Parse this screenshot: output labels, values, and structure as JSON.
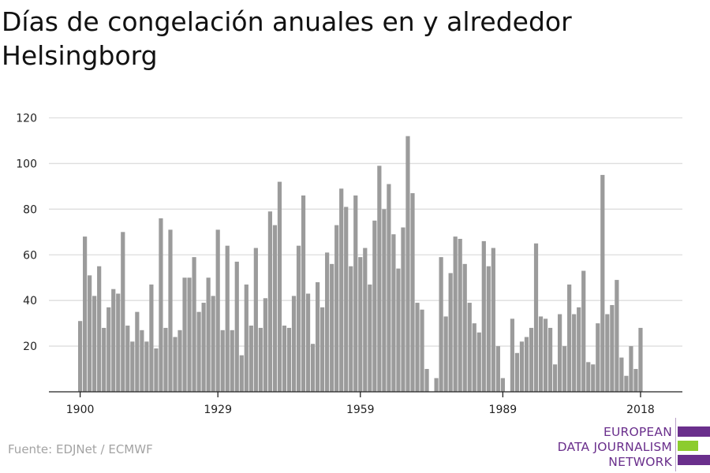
{
  "chart_data": {
    "type": "bar",
    "title": "Días de congelación anuales en y alrededor Helsingborg",
    "xlabel": "",
    "ylabel": "",
    "ylim": [
      0,
      120
    ],
    "y_ticks": [
      20,
      40,
      60,
      80,
      100,
      120
    ],
    "x_ticks": [
      1900,
      1929,
      1959,
      1989,
      2018
    ],
    "grid": true,
    "bar_color": "#9b9b9b",
    "x": [
      1900,
      1901,
      1902,
      1903,
      1904,
      1905,
      1906,
      1907,
      1908,
      1909,
      1910,
      1911,
      1912,
      1913,
      1914,
      1915,
      1916,
      1917,
      1918,
      1919,
      1920,
      1921,
      1922,
      1923,
      1924,
      1925,
      1926,
      1927,
      1928,
      1929,
      1930,
      1931,
      1932,
      1933,
      1934,
      1935,
      1936,
      1937,
      1938,
      1939,
      1940,
      1941,
      1942,
      1943,
      1944,
      1945,
      1946,
      1947,
      1948,
      1949,
      1950,
      1951,
      1952,
      1953,
      1954,
      1955,
      1956,
      1957,
      1958,
      1959,
      1960,
      1961,
      1962,
      1963,
      1964,
      1965,
      1966,
      1967,
      1968,
      1969,
      1970,
      1971,
      1972,
      1973,
      1974,
      1975,
      1976,
      1977,
      1978,
      1979,
      1980,
      1981,
      1982,
      1983,
      1984,
      1985,
      1986,
      1987,
      1988,
      1989,
      1990,
      1991,
      1992,
      1993,
      1994,
      1995,
      1996,
      1997,
      1998,
      1999,
      2000,
      2001,
      2002,
      2003,
      2004,
      2005,
      2006,
      2007,
      2008,
      2009,
      2010,
      2011,
      2012,
      2013,
      2014,
      2015,
      2016,
      2017,
      2018
    ],
    "values": [
      31,
      68,
      51,
      42,
      55,
      28,
      37,
      45,
      43,
      70,
      29,
      22,
      35,
      27,
      22,
      47,
      19,
      76,
      28,
      71,
      24,
      27,
      50,
      50,
      59,
      35,
      39,
      50,
      42,
      71,
      27,
      64,
      27,
      57,
      16,
      47,
      29,
      63,
      28,
      41,
      79,
      73,
      92,
      29,
      28,
      42,
      64,
      86,
      43,
      21,
      48,
      37,
      61,
      56,
      73,
      89,
      81,
      55,
      86,
      59,
      63,
      47,
      75,
      99,
      80,
      91,
      69,
      54,
      72,
      112,
      87,
      39,
      36,
      10,
      0,
      6,
      59,
      33,
      52,
      68,
      67,
      56,
      39,
      30,
      26,
      66,
      55,
      63,
      20,
      6,
      0,
      32,
      17,
      22,
      24,
      28,
      65,
      33,
      32,
      28,
      12,
      34,
      20,
      47,
      34,
      37,
      53,
      13,
      12,
      30,
      95,
      34,
      38,
      49,
      15,
      7,
      20,
      10,
      28
    ]
  },
  "source_text": "Fuente: EDJNet / ECMWF",
  "logo": {
    "line1": "EUROPEAN",
    "line2": "DATA JOURNALISM",
    "line3": "NETWORK",
    "purple": "#6a2f8c",
    "green": "#8ccc2e"
  }
}
